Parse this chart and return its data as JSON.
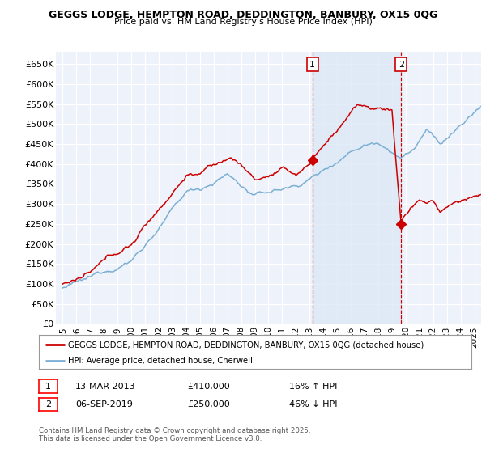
{
  "title_line1": "GEGGS LODGE, HEMPTON ROAD, DEDDINGTON, BANBURY, OX15 0QG",
  "title_line2": "Price paid vs. HM Land Registry's House Price Index (HPI)",
  "ylim": [
    0,
    680000
  ],
  "yticks": [
    0,
    50000,
    100000,
    150000,
    200000,
    250000,
    300000,
    350000,
    400000,
    450000,
    500000,
    550000,
    600000,
    650000
  ],
  "xlim_start": 1994.5,
  "xlim_end": 2025.5,
  "xticks": [
    1995,
    1996,
    1997,
    1998,
    1999,
    2000,
    2001,
    2002,
    2003,
    2004,
    2005,
    2006,
    2007,
    2008,
    2009,
    2010,
    2011,
    2012,
    2013,
    2014,
    2015,
    2016,
    2017,
    2018,
    2019,
    2020,
    2021,
    2022,
    2023,
    2024,
    2025
  ],
  "ann1_x": 2013.2,
  "ann2_x": 2019.67,
  "ann1_y": 410000,
  "ann2_y": 250000,
  "annotation1": {
    "label": "1",
    "date": "13-MAR-2013",
    "price": 410000,
    "hpi_pct": "16% ↑ HPI"
  },
  "annotation2": {
    "label": "2",
    "date": "06-SEP-2019",
    "price": 250000,
    "hpi_pct": "46% ↓ HPI"
  },
  "legend_line1": "GEGGS LODGE, HEMPTON ROAD, DEDDINGTON, BANBURY, OX15 0QG (detached house)",
  "legend_line2": "HPI: Average price, detached house, Cherwell",
  "red_color": "#cc0000",
  "blue_color": "#7bafd4",
  "shade_color": "#dce8f5",
  "footnote": "Contains HM Land Registry data © Crown copyright and database right 2025.\nThis data is licensed under the Open Government Licence v3.0.",
  "bg_color": "#eef2fa"
}
